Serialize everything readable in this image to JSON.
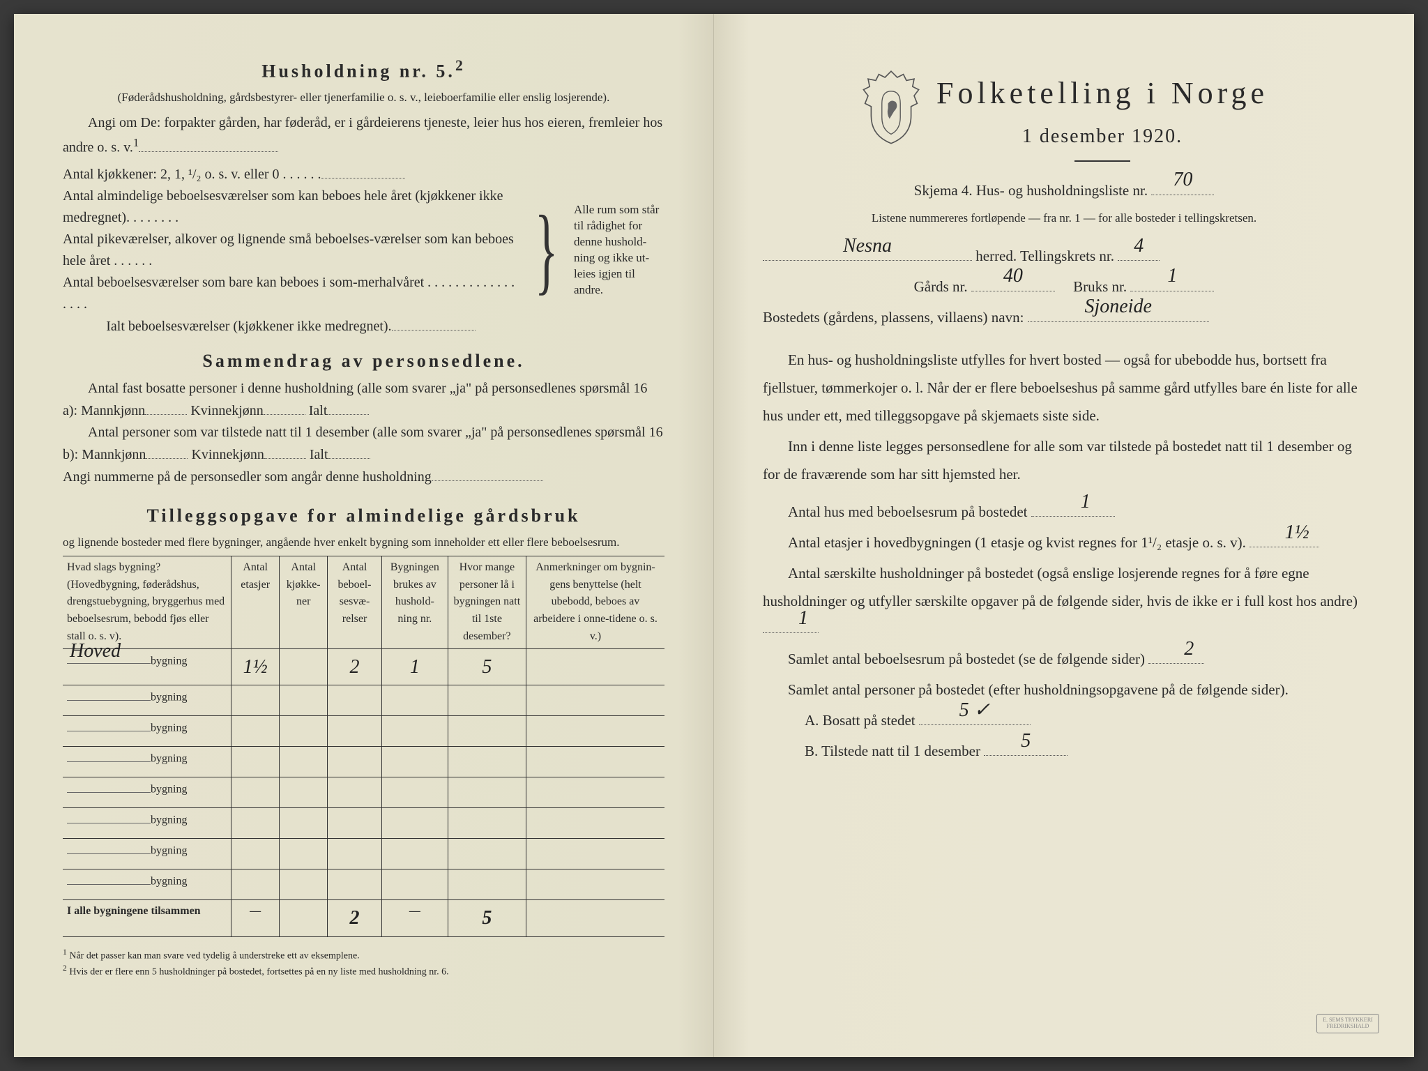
{
  "colors": {
    "paper_left": "#e6e3ce",
    "paper_right": "#ebe7d4",
    "ink": "#2a2a2a",
    "rule": "#555555",
    "handwriting": "#222222"
  },
  "typography": {
    "body_fontsize_pt": 15,
    "title_fontsize_pt": 33,
    "section_heading_fontsize_pt": 20,
    "table_fontsize_pt": 12,
    "footnote_fontsize_pt": 10,
    "handwriting_fontsize_pt": 21
  },
  "left": {
    "heading": "Husholdning nr. 5.",
    "heading_sup": "2",
    "sub1": "(Føderådshusholdning, gårdsbestyrer- eller tjenerfamilie o. s. v., leieboerfamilie eller enslig losjerende).",
    "angi": "Angi om De:  forpakter gården, har føderåd, er i gårdeierens tjeneste, leier hus hos eieren, fremleier hos andre o. s. v.",
    "angi_sup": "1",
    "kitchen_line": "Antal kjøkkener: 2, 1, ¹/₂ o. s. v. eller 0 . . . . . .",
    "rooms": [
      "Antal almindelige beboelsesværelser som kan beboes hele året (kjøkkener ikke medregnet). . . . . . . .",
      "Antal pikeværelser, alkover og lignende små beboelses-værelser som kan beboes hele året . . . . . .",
      "Antal beboelsesværelser som bare kan beboes i som-merhalvåret . . . . . . . . . . . . . . . . ."
    ],
    "ialt_line": "Ialt beboelsesværelser  (kjøkkener ikke medregnet).",
    "brace_note": "Alle rum som står til rådighet for denne hushold-ning og ikke ut-leies igjen til andre.",
    "summary_heading": "Sammendrag av personsedlene.",
    "summary_p1a": "Antal fast bosatte personer i denne husholdning (alle som svarer „ja\" på personsedlenes spørsmål 16 a): Mannkjønn",
    "summary_kv": "Kvinnekjønn",
    "summary_ialt": "Ialt",
    "summary_p2a": "Antal personer som var tilstede natt til 1 desember (alle som svarer „ja\" på personsedlenes spørsmål 16 b): Mannkjønn",
    "summary_p3": "Angi nummerne på de personsedler som angår denne husholdning",
    "tillegg_heading": "Tilleggsopgave for almindelige gårdsbruk",
    "tillegg_sub": "og lignende bosteder med flere bygninger, angående hver enkelt bygning som inneholder ett eller flere beboelsesrum.",
    "table": {
      "columns": [
        "Hvad slags bygning?\n(Hovedbygning, føderådshus, drengstuebygning, bryggerhus med beboelsesrum, bebodd fjøs eller stall o. s. v).",
        "Antal etasjer",
        "Antal kjøkke-ner",
        "Antal beboel-sesvæ-relser",
        "Bygningen brukes av hushold-ning nr.",
        "Hvor mange personer lå i bygningen natt til 1ste desember?",
        "Anmerkninger om bygnin-gens benyttelse (helt ubebodd, beboes av arbeidere i onne-tidene o. s. v.)"
      ],
      "col_widths_pct": [
        28,
        8,
        8,
        9,
        11,
        13,
        23
      ],
      "row_label_suffix": "bygning",
      "rows": [
        {
          "name": "Hoved",
          "etasjer": "1½",
          "kjokkener": "",
          "beboelse": "2",
          "husholdning": "1",
          "personer": "5",
          "anm": ""
        },
        {
          "name": "",
          "etasjer": "",
          "kjokkener": "",
          "beboelse": "",
          "husholdning": "",
          "personer": "",
          "anm": ""
        },
        {
          "name": "",
          "etasjer": "",
          "kjokkener": "",
          "beboelse": "",
          "husholdning": "",
          "personer": "",
          "anm": ""
        },
        {
          "name": "",
          "etasjer": "",
          "kjokkener": "",
          "beboelse": "",
          "husholdning": "",
          "personer": "",
          "anm": ""
        },
        {
          "name": "",
          "etasjer": "",
          "kjokkener": "",
          "beboelse": "",
          "husholdning": "",
          "personer": "",
          "anm": ""
        },
        {
          "name": "",
          "etasjer": "",
          "kjokkener": "",
          "beboelse": "",
          "husholdning": "",
          "personer": "",
          "anm": ""
        },
        {
          "name": "",
          "etasjer": "",
          "kjokkener": "",
          "beboelse": "",
          "husholdning": "",
          "personer": "",
          "anm": ""
        },
        {
          "name": "",
          "etasjer": "",
          "kjokkener": "",
          "beboelse": "",
          "husholdning": "",
          "personer": "",
          "anm": ""
        }
      ],
      "total_label": "I alle bygningene tilsammen",
      "total": {
        "etasjer": "—",
        "kjokkener": "",
        "beboelse": "2",
        "husholdning": "—",
        "personer": "5",
        "anm": ""
      }
    },
    "footnote1": "Når det passer kan man svare ved tydelig å understreke ett av eksemplene.",
    "footnote2": "Hvis der er flere enn 5 husholdninger på bostedet, fortsettes på en ny liste med husholdning nr. 6."
  },
  "right": {
    "main_title": "Folketelling i Norge",
    "sub_title": "1 desember 1920.",
    "skjema_line_a": "Skjema 4.  Hus- og husholdningsliste nr.",
    "skjema_nr": "70",
    "listene": "Listene nummereres fortløpende — fra nr. 1 — for alle bosteder i tellingskretsen.",
    "herred_value": "Nesna",
    "herred_label": "herred.   Tellingskrets nr.",
    "tellingskrets_nr": "4",
    "gards_label": "Gårds nr.",
    "gards_nr": "40",
    "bruks_label": "Bruks nr.",
    "bruks_nr": "1",
    "bosted_label": "Bostedets (gårdens, plassens, villaens) navn:",
    "bosted_navn": "Sjoneide",
    "para1": "En hus- og husholdningsliste utfylles for hvert bosted — også for ubebodde hus, bortsett fra fjellstuer, tømmerkojer o. l.  Når der er flere beboelseshus på samme gård utfylles bare én liste for alle hus under ett, med tilleggsopgave på skjemaets siste side.",
    "para2": "Inn i denne liste legges personsedlene for alle som var tilstede på bostedet natt til 1 desember og for de fraværende som har sitt hjemsted her.",
    "antal_hus_label": "Antal hus med beboelsesrum på bostedet",
    "antal_hus": "1",
    "antal_etasjer_label_a": "Antal etasjer i hovedbygningen (1 etasje og kvist regnes for 1¹/₂ etasje o. s. v).",
    "antal_etasjer": "1½",
    "antal_hush_label": "Antal særskilte husholdninger på bostedet (også enslige losjerende regnes for å føre egne husholdninger og utfyller særskilte opgaver på de følgende sider, hvis de ikke er i full kost hos andre)",
    "antal_hush": "1",
    "samlet_rum_label": "Samlet antal beboelsesrum på bostedet (se de følgende sider)",
    "samlet_rum": "2",
    "samlet_pers_label": "Samlet antal personer på bostedet (efter husholdningsopgavene på de følgende sider).",
    "bosatt_label": "A.  Bosatt på stedet",
    "bosatt": "5 ✓",
    "tilstede_label": "B.  Tilstede natt til 1 desember",
    "tilstede": "5"
  }
}
